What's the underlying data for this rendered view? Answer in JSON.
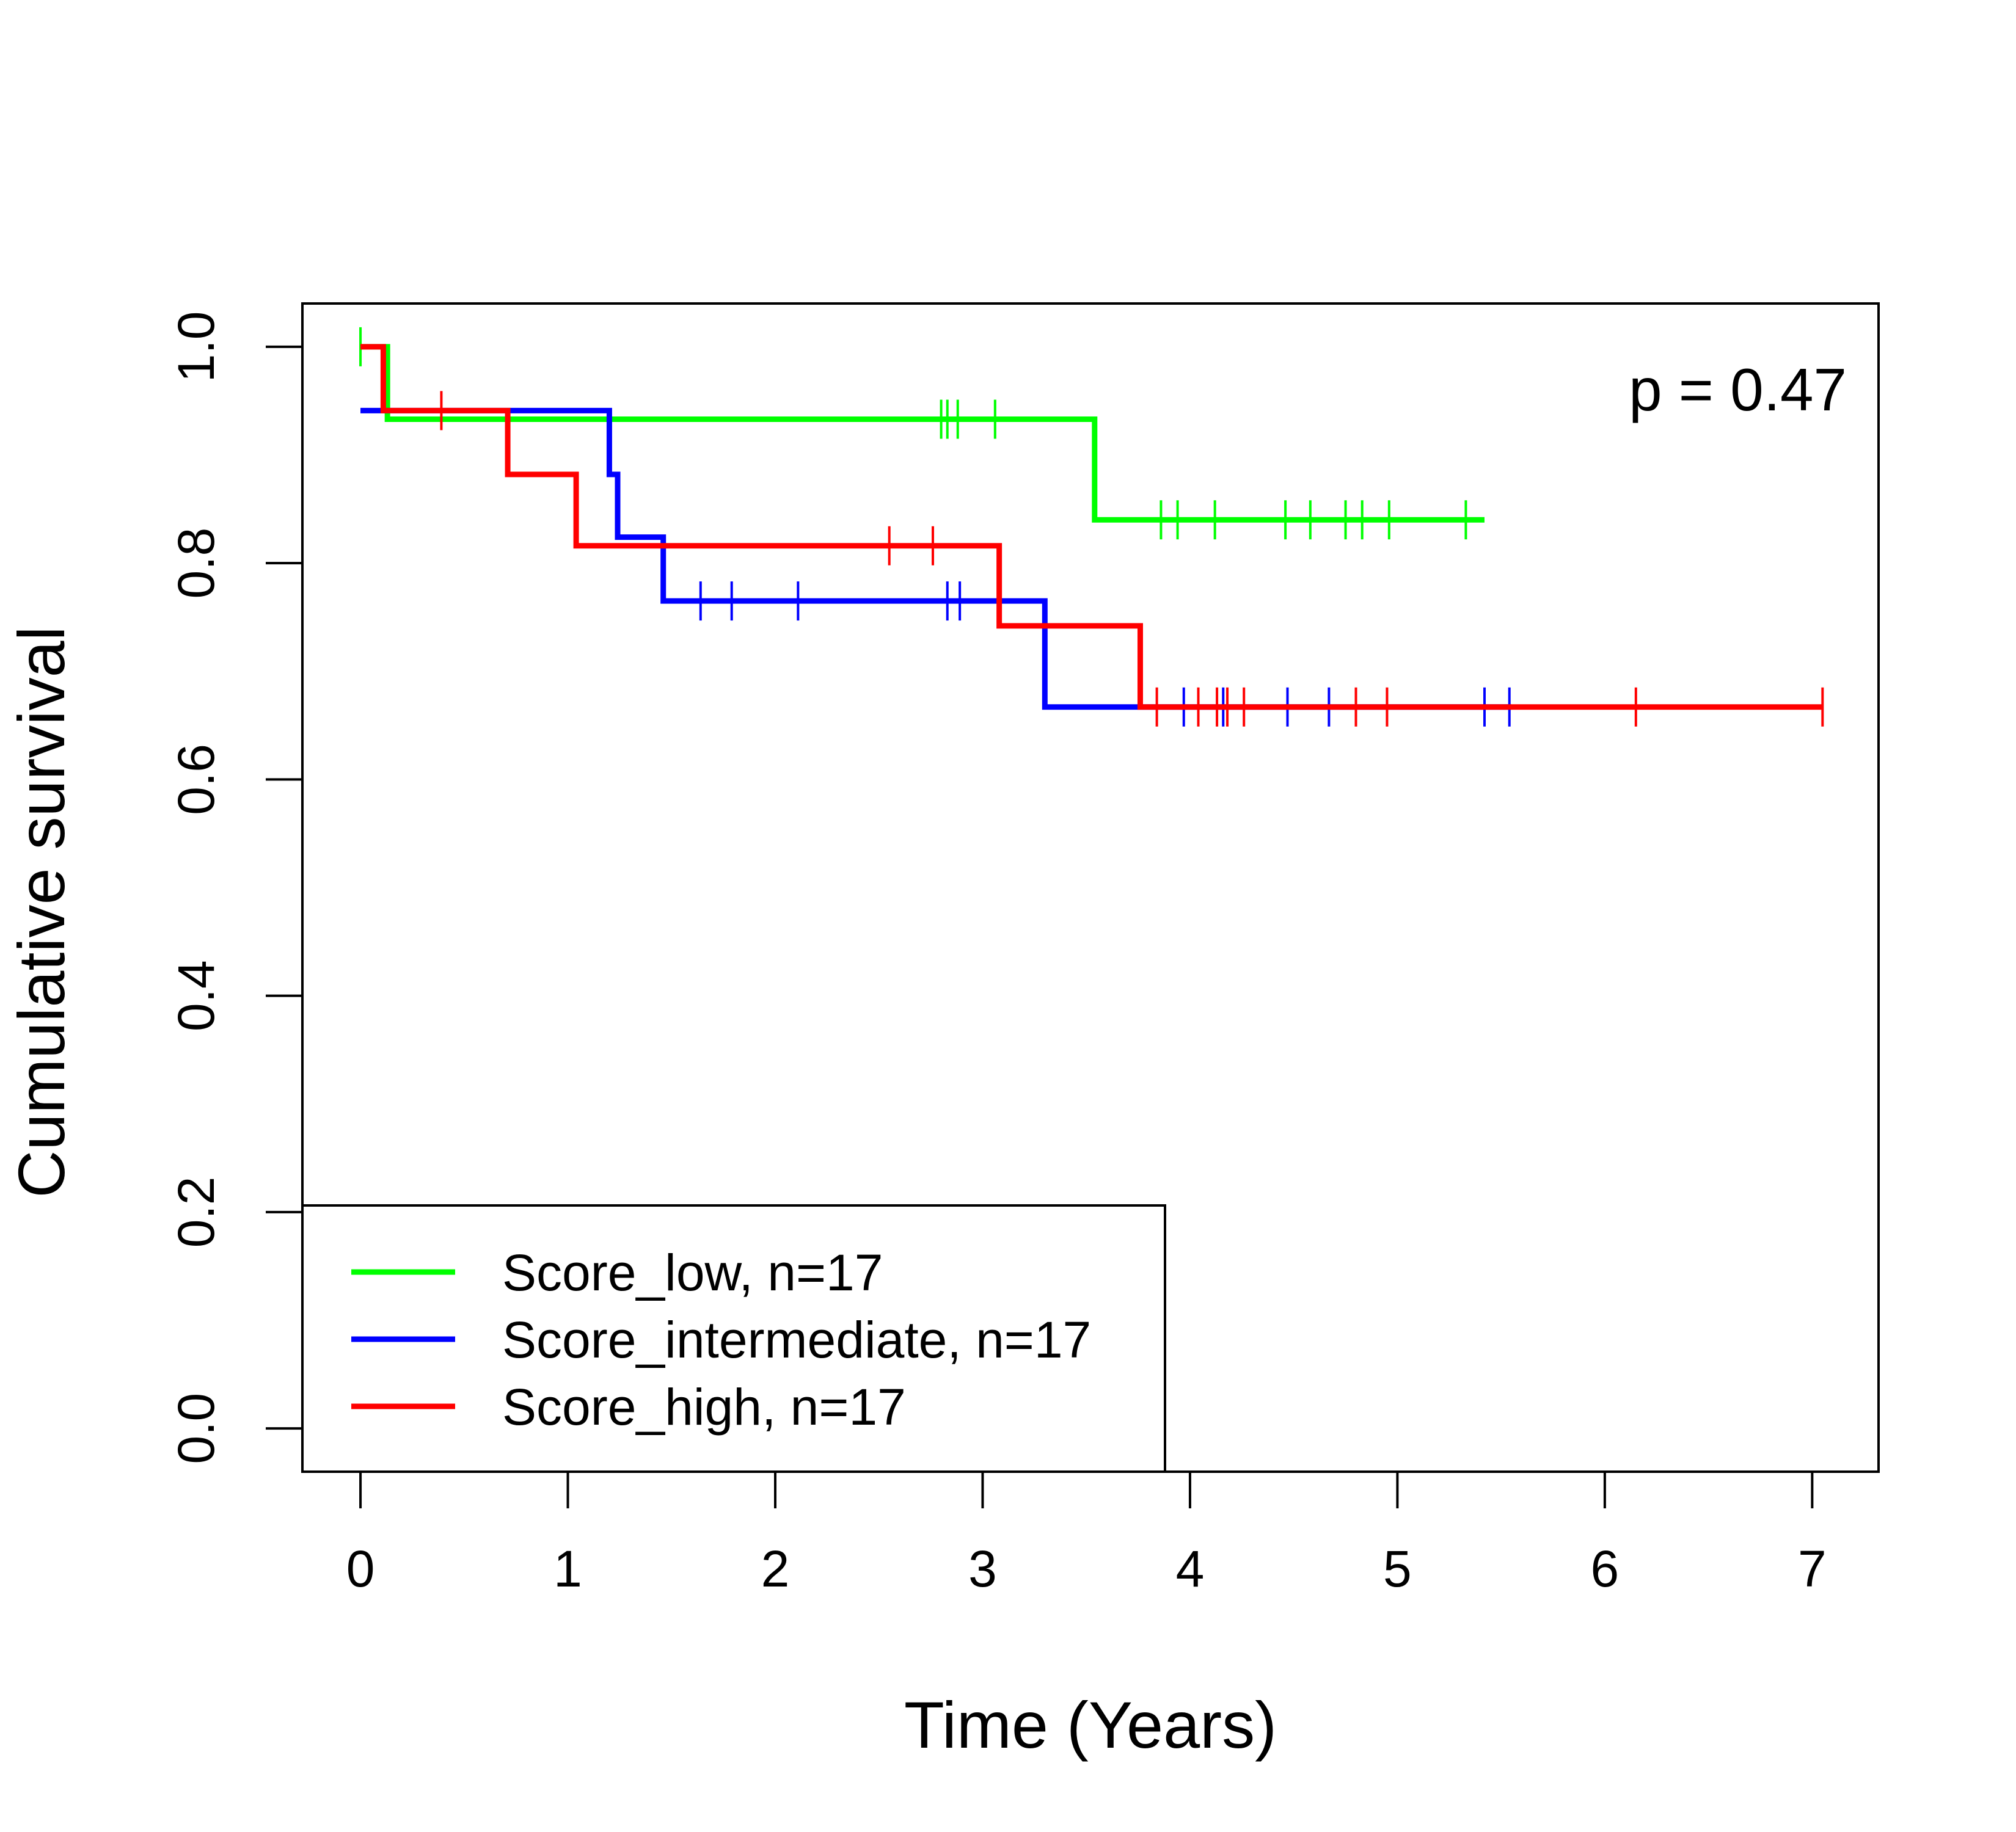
{
  "chart_data": {
    "type": "line",
    "subtype": "kaplan-meier-step",
    "title": "",
    "xlabel": "Time (Years)",
    "ylabel": "Cumulative survival",
    "xlim": [
      -0.28,
      7.32
    ],
    "ylim": [
      -0.04,
      1.04
    ],
    "xticks": [
      0,
      1,
      2,
      3,
      4,
      5,
      6,
      7
    ],
    "yticks": [
      0.0,
      0.2,
      0.4,
      0.6,
      0.8,
      1.0
    ],
    "xtick_labels": [
      "0",
      "1",
      "2",
      "3",
      "4",
      "5",
      "6",
      "7"
    ],
    "ytick_labels": [
      "0.0",
      "0.2",
      "0.4",
      "0.6",
      "0.8",
      "1.0"
    ],
    "grid": false,
    "legend_position": "bottom-left",
    "annotation": "p = 0.47",
    "series": [
      {
        "name": "Score_low, n=17",
        "color": "#00ff00",
        "steps": [
          [
            0,
            1.0
          ],
          [
            0.13,
            0.933
          ],
          [
            3.54,
            0.84
          ],
          [
            5.42,
            0.84
          ]
        ],
        "censor": [
          [
            0.0,
            1.0
          ],
          [
            2.8,
            0.933
          ],
          [
            2.83,
            0.933
          ],
          [
            2.88,
            0.933
          ],
          [
            3.06,
            0.933
          ],
          [
            3.86,
            0.84
          ],
          [
            3.94,
            0.84
          ],
          [
            4.12,
            0.84
          ],
          [
            4.46,
            0.84
          ],
          [
            4.58,
            0.84
          ],
          [
            4.75,
            0.84
          ],
          [
            4.83,
            0.84
          ],
          [
            4.96,
            0.84
          ],
          [
            5.33,
            0.84
          ]
        ]
      },
      {
        "name": "Score_intermediate, n=17",
        "color": "#0000ff",
        "steps": [
          [
            0,
            0.941
          ],
          [
            1.2,
            0.882
          ],
          [
            1.24,
            0.824
          ],
          [
            1.46,
            0.765
          ],
          [
            3.3,
            0.667
          ],
          [
            5.55,
            0.667
          ]
        ],
        "censor": [
          [
            1.64,
            0.765
          ],
          [
            1.79,
            0.765
          ],
          [
            2.11,
            0.765
          ],
          [
            2.83,
            0.765
          ],
          [
            2.89,
            0.765
          ],
          [
            3.97,
            0.667
          ],
          [
            4.16,
            0.667
          ],
          [
            4.47,
            0.667
          ],
          [
            4.67,
            0.667
          ],
          [
            5.42,
            0.667
          ],
          [
            5.54,
            0.667
          ]
        ]
      },
      {
        "name": "Score_high, n=17",
        "color": "#ff0000",
        "steps": [
          [
            0,
            1.0
          ],
          [
            0.11,
            0.941
          ],
          [
            0.71,
            0.882
          ],
          [
            1.04,
            0.816
          ],
          [
            3.08,
            0.742
          ],
          [
            3.76,
            0.667
          ],
          [
            7.05,
            0.667
          ]
        ],
        "censor": [
          [
            0.39,
            0.941
          ],
          [
            2.55,
            0.816
          ],
          [
            2.76,
            0.816
          ],
          [
            3.84,
            0.667
          ],
          [
            4.04,
            0.667
          ],
          [
            4.13,
            0.667
          ],
          [
            4.18,
            0.667
          ],
          [
            4.26,
            0.667
          ],
          [
            4.8,
            0.667
          ],
          [
            4.95,
            0.667
          ],
          [
            6.15,
            0.667
          ],
          [
            7.05,
            0.667
          ]
        ]
      }
    ]
  }
}
